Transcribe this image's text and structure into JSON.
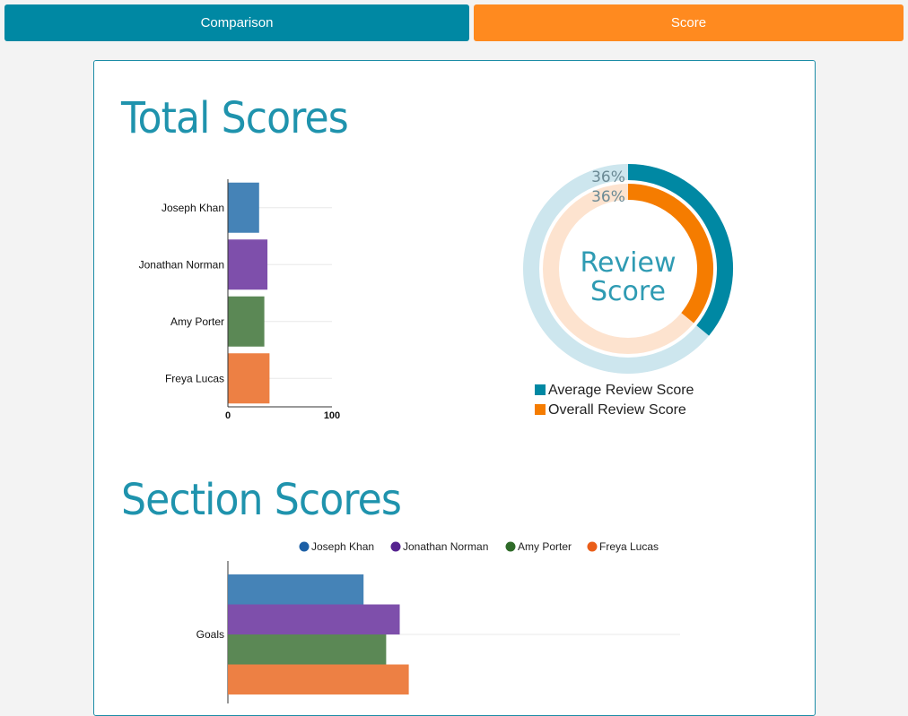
{
  "tabs": {
    "comparison": "Comparison",
    "score": "Score"
  },
  "headings": {
    "total": "Total Scores",
    "section": "Section Scores"
  },
  "colors": {
    "joseph": "#3f7fb5",
    "jonathan": "#7a49a8",
    "amy": "#568450",
    "freya": "#ec7c3e",
    "average_ring": "#0088a3",
    "average_ring_bg": "#cde6ee",
    "overall_ring": "#f57c00",
    "overall_ring_bg": "#fde3cf",
    "legend_joseph": "#1c5fa5",
    "legend_jonathan": "#56238f",
    "legend_amy": "#2e6a28",
    "legend_freya": "#ea5e19"
  },
  "donut": {
    "center_line1": "Review",
    "center_line2": "Score",
    "average_label": "36%",
    "overall_label": "36%",
    "legend": [
      "Average Review Score",
      "Overall Review Score"
    ]
  },
  "chart_data": [
    {
      "type": "bar",
      "orientation": "horizontal",
      "categories": [
        "Joseph Khan",
        "Jonathan Norman",
        "Amy Porter",
        "Freya Lucas"
      ],
      "values": [
        30,
        38,
        35,
        40
      ],
      "xlim": [
        0,
        100
      ],
      "ticks": [
        "0",
        "100"
      ]
    },
    {
      "type": "pie",
      "series": [
        {
          "name": "Average Review Score",
          "value": 36
        },
        {
          "name": "Overall Review Score",
          "value": 36
        }
      ]
    },
    {
      "type": "bar",
      "orientation": "horizontal",
      "categories": [
        "Goals"
      ],
      "series": [
        {
          "name": "Joseph Khan",
          "values": [
            30
          ]
        },
        {
          "name": "Jonathan Norman",
          "values": [
            38
          ]
        },
        {
          "name": "Amy Porter",
          "values": [
            35
          ]
        },
        {
          "name": "Freya Lucas",
          "values": [
            40
          ]
        }
      ],
      "xlim": [
        0,
        100
      ]
    }
  ]
}
